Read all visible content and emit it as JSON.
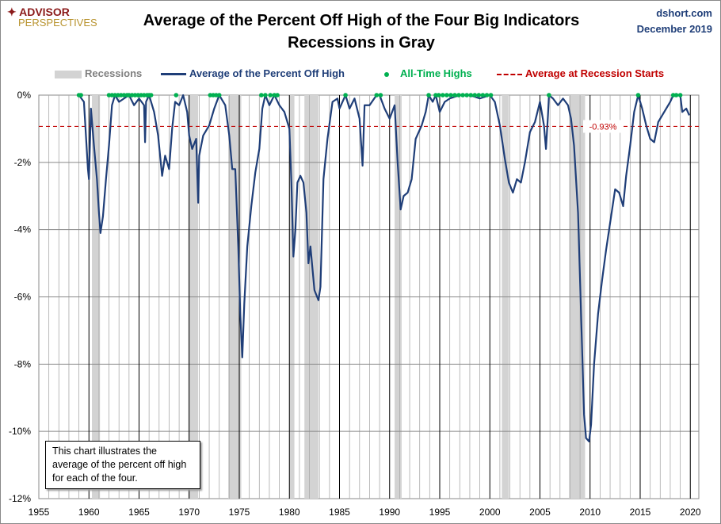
{
  "header": {
    "logo_line1": "ADVISOR",
    "logo_line2": "PERSPECTIVES",
    "source": "dshort.com",
    "date": "December 2019"
  },
  "note": "This chart illustrates the average of the percent off high for each of the four.",
  "chart_data": {
    "type": "line",
    "title": "Average of the Percent Off High of the Four Big Indicators",
    "subtitle": "Recessions in Gray",
    "legend": [
      "Recessions",
      "Average of the Percent Off High",
      "All-Time Highs",
      "Average at Recession Starts"
    ],
    "legend_position": "top",
    "colors": {
      "line": "#1f3e78",
      "ath": "#00b050",
      "avg": "#c00000",
      "recession": "#d3d3d3"
    },
    "xlim": [
      1955,
      2020.85
    ],
    "ylim": [
      -12,
      0
    ],
    "x_ticks": [
      "1955",
      "1960",
      "1965",
      "1970",
      "1975",
      "1980",
      "1985",
      "1990",
      "1995",
      "2000",
      "2005",
      "2010",
      "2015",
      "2020"
    ],
    "y_ticks": [
      "0%",
      "-2%",
      "-4%",
      "-6%",
      "-8%",
      "-10%",
      "-12%"
    ],
    "grid": true,
    "average_at_recession_starts": -0.93,
    "average_label": "-0.93%",
    "recessions": [
      [
        1960.3,
        1961.1
      ],
      [
        1969.9,
        1970.9
      ],
      [
        1973.9,
        1975.2
      ],
      [
        1980.0,
        1980.5
      ],
      [
        1981.5,
        1982.9
      ],
      [
        1990.5,
        1991.2
      ],
      [
        2001.2,
        2001.9
      ],
      [
        2007.9,
        2009.5
      ]
    ],
    "series": [
      [
        1959.0,
        0
      ],
      [
        1959.5,
        -0.2
      ],
      [
        1959.9,
        -2.2
      ],
      [
        1960.0,
        -2.5
      ],
      [
        1960.2,
        -0.4
      ],
      [
        1960.5,
        -1.5
      ],
      [
        1960.8,
        -2.5
      ],
      [
        1961.0,
        -3.5
      ],
      [
        1961.15,
        -4.1
      ],
      [
        1961.4,
        -3.6
      ],
      [
        1961.7,
        -2.5
      ],
      [
        1962.0,
        -1.5
      ],
      [
        1962.3,
        -0.3
      ],
      [
        1962.6,
        0
      ],
      [
        1963,
        -0.2
      ],
      [
        1963.5,
        -0.1
      ],
      [
        1964,
        0
      ],
      [
        1964.5,
        -0.3
      ],
      [
        1965,
        -0.1
      ],
      [
        1965.5,
        -0.3
      ],
      [
        1965.6,
        -1.4
      ],
      [
        1965.7,
        -0.2
      ],
      [
        1966,
        0
      ],
      [
        1966.5,
        -0.5
      ],
      [
        1966.9,
        -1.2
      ],
      [
        1967.3,
        -2.4
      ],
      [
        1967.6,
        -1.8
      ],
      [
        1968,
        -2.2
      ],
      [
        1968.3,
        -1.0
      ],
      [
        1968.6,
        -0.2
      ],
      [
        1969,
        -0.3
      ],
      [
        1969.4,
        0
      ],
      [
        1969.8,
        -0.5
      ],
      [
        1970,
        -1.2
      ],
      [
        1970.3,
        -1.6
      ],
      [
        1970.7,
        -1.3
      ],
      [
        1970.9,
        -3.2
      ],
      [
        1971.0,
        -1.8
      ],
      [
        1971.4,
        -1.2
      ],
      [
        1972,
        -0.9
      ],
      [
        1972.5,
        -0.4
      ],
      [
        1973,
        0
      ],
      [
        1973.6,
        -0.3
      ],
      [
        1974,
        -1.2
      ],
      [
        1974.3,
        -2.2
      ],
      [
        1974.6,
        -2.2
      ],
      [
        1974.9,
        -4.5
      ],
      [
        1975.1,
        -6.5
      ],
      [
        1975.3,
        -7.8
      ],
      [
        1975.5,
        -6.2
      ],
      [
        1975.8,
        -4.5
      ],
      [
        1976.2,
        -3.3
      ],
      [
        1976.6,
        -2.3
      ],
      [
        1977,
        -1.6
      ],
      [
        1977.3,
        -0.4
      ],
      [
        1977.6,
        0
      ],
      [
        1978,
        -0.3
      ],
      [
        1978.5,
        0
      ],
      [
        1979,
        -0.3
      ],
      [
        1979.5,
        -0.5
      ],
      [
        1980.0,
        -1.0
      ],
      [
        1980.2,
        -2.6
      ],
      [
        1980.4,
        -4.8
      ],
      [
        1980.6,
        -4.0
      ],
      [
        1980.8,
        -2.6
      ],
      [
        1981.1,
        -2.4
      ],
      [
        1981.4,
        -2.6
      ],
      [
        1981.7,
        -3.5
      ],
      [
        1981.9,
        -5.0
      ],
      [
        1982.1,
        -4.5
      ],
      [
        1982.5,
        -5.8
      ],
      [
        1982.9,
        -6.1
      ],
      [
        1983.1,
        -5.7
      ],
      [
        1983.4,
        -2.5
      ],
      [
        1983.8,
        -1.3
      ],
      [
        1984.3,
        -0.2
      ],
      [
        1984.8,
        -0.1
      ],
      [
        1985,
        -0.4
      ],
      [
        1985.6,
        0
      ],
      [
        1986,
        -0.4
      ],
      [
        1986.5,
        -0.1
      ],
      [
        1987,
        -0.7
      ],
      [
        1987.3,
        -2.1
      ],
      [
        1987.5,
        -0.3
      ],
      [
        1988,
        -0.3
      ],
      [
        1988.7,
        0
      ],
      [
        1989,
        0
      ],
      [
        1989.5,
        -0.4
      ],
      [
        1990,
        -0.7
      ],
      [
        1990.5,
        -0.3
      ],
      [
        1990.8,
        -2.0
      ],
      [
        1991.1,
        -3.4
      ],
      [
        1991.4,
        -3.0
      ],
      [
        1991.8,
        -2.9
      ],
      [
        1992.2,
        -2.5
      ],
      [
        1992.6,
        -1.3
      ],
      [
        1993.2,
        -0.9
      ],
      [
        1993.6,
        -0.5
      ],
      [
        1993.9,
        0
      ],
      [
        1994.3,
        -0.2
      ],
      [
        1994.6,
        0
      ],
      [
        1995,
        -0.5
      ],
      [
        1995.5,
        -0.2
      ],
      [
        1996,
        -0.1
      ],
      [
        1997,
        0
      ],
      [
        1998,
        0
      ],
      [
        1999,
        -0.1
      ],
      [
        2000,
        0
      ],
      [
        2000.5,
        -0.2
      ],
      [
        2001.0,
        -0.9
      ],
      [
        2001.5,
        -1.9
      ],
      [
        2001.9,
        -2.6
      ],
      [
        2002.3,
        -2.9
      ],
      [
        2002.7,
        -2.5
      ],
      [
        2003.1,
        -2.6
      ],
      [
        2003.5,
        -2.0
      ],
      [
        2004,
        -1.1
      ],
      [
        2004.5,
        -0.8
      ],
      [
        2005,
        -0.2
      ],
      [
        2005.4,
        -0.9
      ],
      [
        2005.6,
        -1.6
      ],
      [
        2005.8,
        -0.6
      ],
      [
        2005.9,
        0
      ],
      [
        2006.3,
        -0.1
      ],
      [
        2006.8,
        -0.3
      ],
      [
        2007.3,
        -0.1
      ],
      [
        2007.8,
        -0.3
      ],
      [
        2008.1,
        -0.7
      ],
      [
        2008.4,
        -1.5
      ],
      [
        2008.8,
        -3.5
      ],
      [
        2009.1,
        -6.5
      ],
      [
        2009.4,
        -9.5
      ],
      [
        2009.6,
        -10.2
      ],
      [
        2009.9,
        -10.3
      ],
      [
        2010.1,
        -9.8
      ],
      [
        2010.4,
        -8.0
      ],
      [
        2010.8,
        -6.5
      ],
      [
        2011.2,
        -5.5
      ],
      [
        2011.6,
        -4.6
      ],
      [
        2012.1,
        -3.6
      ],
      [
        2012.5,
        -2.8
      ],
      [
        2012.9,
        -2.9
      ],
      [
        2013.3,
        -3.3
      ],
      [
        2013.6,
        -2.4
      ],
      [
        2014,
        -1.5
      ],
      [
        2014.4,
        -0.5
      ],
      [
        2014.8,
        0
      ],
      [
        2015.2,
        -0.4
      ],
      [
        2015.6,
        -0.9
      ],
      [
        2016,
        -1.3
      ],
      [
        2016.4,
        -1.4
      ],
      [
        2016.8,
        -0.8
      ],
      [
        2017.2,
        -0.6
      ],
      [
        2017.6,
        -0.4
      ],
      [
        2018.0,
        -0.2
      ],
      [
        2018.3,
        0
      ],
      [
        2018.7,
        0
      ],
      [
        2019.0,
        0
      ],
      [
        2019.2,
        -0.5
      ],
      [
        2019.6,
        -0.4
      ],
      [
        2019.9,
        -0.6
      ]
    ],
    "all_time_highs": [
      1959.0,
      1959.2,
      1962.0,
      1962.3,
      1962.6,
      1962.9,
      1963.2,
      1963.5,
      1963.8,
      1964.0,
      1964.3,
      1964.6,
      1964.9,
      1965.2,
      1965.5,
      1965.8,
      1966.0,
      1966.2,
      1968.7,
      1972.1,
      1972.4,
      1972.7,
      1973.0,
      1977.2,
      1977.6,
      1978.1,
      1978.5,
      1978.8,
      1985.6,
      1988.7,
      1989.1,
      1993.9,
      1994.6,
      1994.9,
      1995.3,
      1995.7,
      1996.1,
      1996.5,
      1996.9,
      1997.3,
      1997.7,
      1998.1,
      1998.5,
      1998.9,
      1999.3,
      1999.7,
      2000.1,
      2005.9,
      2014.8,
      2018.3,
      2018.6,
      2019.0
    ]
  }
}
